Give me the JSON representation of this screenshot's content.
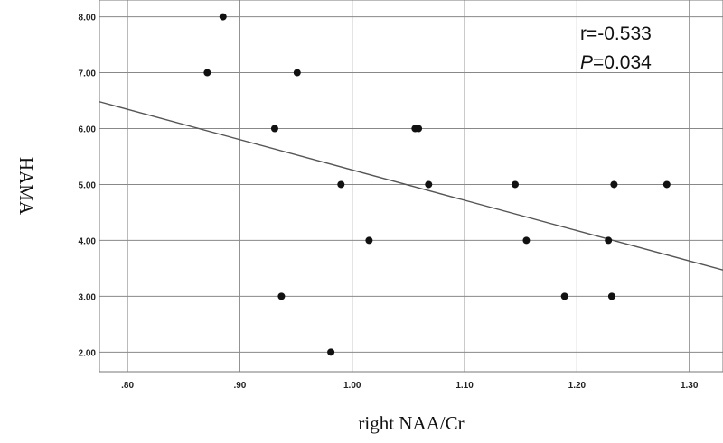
{
  "chart_data": {
    "type": "scatter",
    "xlabel": "right NAA/Cr",
    "ylabel": "HAMA",
    "xlim": [
      0.775,
      1.33
    ],
    "ylim": [
      1.65,
      8.3
    ],
    "x_ticks": [
      ".80",
      ".90",
      "1.00",
      "1.10",
      "1.20",
      "1.30"
    ],
    "y_ticks": [
      "2.00",
      "3.00",
      "4.00",
      "5.00",
      "6.00",
      "7.00",
      "8.00"
    ],
    "grid": true,
    "points": [
      {
        "x": 0.885,
        "y": 8
      },
      {
        "x": 0.871,
        "y": 7
      },
      {
        "x": 0.951,
        "y": 7
      },
      {
        "x": 0.931,
        "y": 6
      },
      {
        "x": 1.056,
        "y": 6
      },
      {
        "x": 1.059,
        "y": 6
      },
      {
        "x": 0.99,
        "y": 5
      },
      {
        "x": 1.068,
        "y": 5
      },
      {
        "x": 1.145,
        "y": 5
      },
      {
        "x": 1.233,
        "y": 5
      },
      {
        "x": 1.28,
        "y": 5
      },
      {
        "x": 1.015,
        "y": 4
      },
      {
        "x": 1.155,
        "y": 4
      },
      {
        "x": 1.228,
        "y": 4
      },
      {
        "x": 0.937,
        "y": 3
      },
      {
        "x": 1.189,
        "y": 3
      },
      {
        "x": 1.231,
        "y": 3
      },
      {
        "x": 0.981,
        "y": 2
      }
    ],
    "fit_line": {
      "x": [
        0.775,
        1.33
      ],
      "y": [
        6.48,
        3.47
      ]
    },
    "annotation": {
      "r": "r=-0.533",
      "p_label": "P",
      "p_value": "=0.034"
    }
  }
}
